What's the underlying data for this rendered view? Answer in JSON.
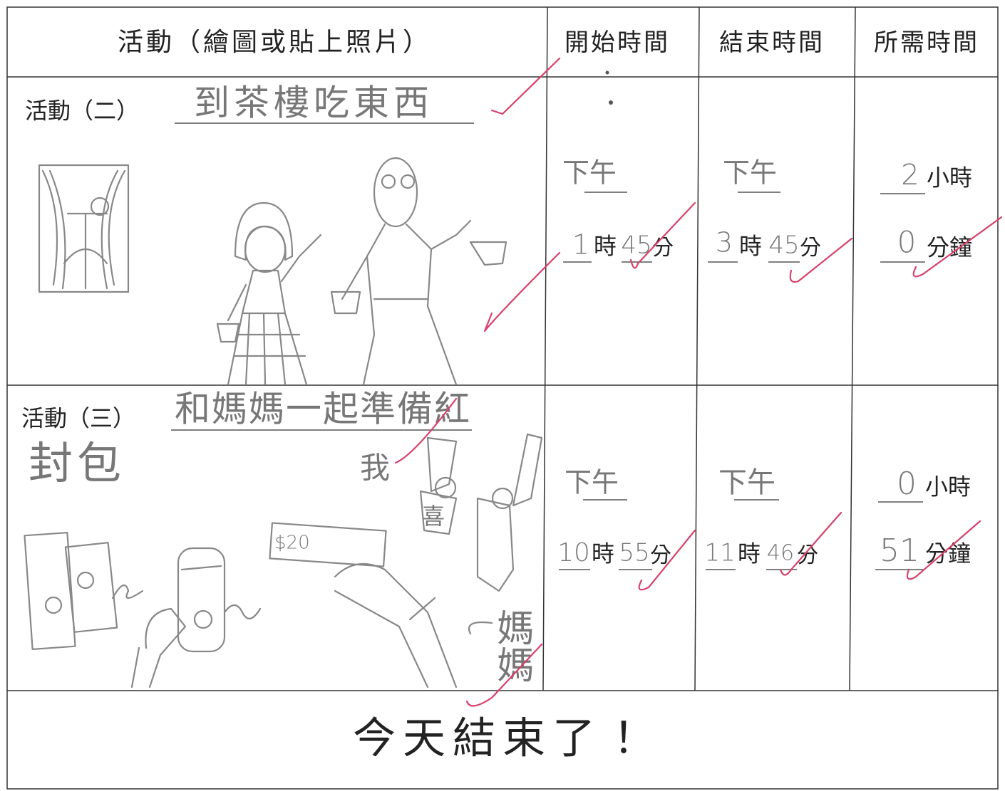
{
  "header": {
    "columns": [
      "活動（繪圖或貼上照片）",
      "開始時間",
      "結束時間",
      "所需時間"
    ]
  },
  "rows": [
    {
      "label": "活動（二）",
      "title_lines": [
        "到茶樓吃東西"
      ],
      "drawing_labels": [],
      "start": {
        "period": "下午",
        "hour": "1",
        "hour_unit": "時",
        "minute": "45",
        "minute_unit": "分"
      },
      "end": {
        "period": "下午",
        "hour": "3",
        "hour_unit": "時",
        "minute": "45",
        "minute_unit": "分"
      },
      "duration": {
        "hours": "2",
        "hours_unit": "小時",
        "minutes": "0",
        "minutes_unit": "分鐘"
      }
    },
    {
      "label": "活動（三）",
      "title_lines": [
        "和媽媽一起準備紅",
        "封包"
      ],
      "drawing_labels": [
        "我",
        "$20",
        "喜",
        "媽媽"
      ],
      "start": {
        "period": "下午",
        "hour": "10",
        "hour_unit": "時",
        "minute": "55",
        "minute_unit": "分"
      },
      "end": {
        "period": "下午",
        "hour": "11",
        "hour_unit": "時",
        "minute": "46",
        "minute_unit": "分"
      },
      "duration": {
        "hours": "0",
        "hours_unit": "小時",
        "minutes": "51",
        "minutes_unit": "分鐘"
      }
    }
  ],
  "footer": {
    "text": "今天結束了！"
  }
}
